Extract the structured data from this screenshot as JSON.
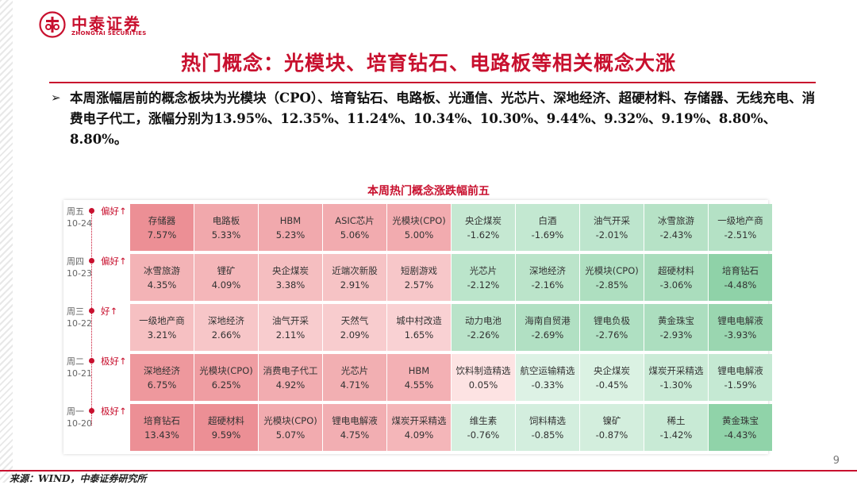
{
  "brand": {
    "cn": "中泰证券",
    "en": "ZHONGTAI SECURITIES"
  },
  "title": "热门概念：光模块、培育钻石、电路板等相关概念大涨",
  "bullet": {
    "symbol": "➢",
    "text": "本周涨幅居前的概念板块为光模块（CPO）、培育钻石、电路板、光通信、光芯片、深地经济、超硬材料、存储器、无线充电、消费电子代工，涨幅分别为13.95%、12.35%、11.24%、10.34%、10.30%、9.44%、9.32%、9.19%、8.80%、8.80%。"
  },
  "chart_data": {
    "type": "table",
    "title": "本周热门概念涨跌幅前五",
    "rows": [
      {
        "weekday": "周五",
        "date": "10-24",
        "sentiment": "偏好↑",
        "cells": [
          {
            "name": "存储器",
            "pct": "7.57%"
          },
          {
            "name": "电路板",
            "pct": "5.33%"
          },
          {
            "name": "HBM",
            "pct": "5.23%"
          },
          {
            "name": "ASIC芯片",
            "pct": "5.06%"
          },
          {
            "name": "光模块(CPO)",
            "pct": "5.00%"
          },
          {
            "name": "央企煤炭",
            "pct": "-1.62%"
          },
          {
            "name": "白酒",
            "pct": "-1.69%"
          },
          {
            "name": "油气开采",
            "pct": "-2.01%"
          },
          {
            "name": "冰雪旅游",
            "pct": "-2.43%"
          },
          {
            "name": "一级地产商",
            "pct": "-2.51%"
          }
        ]
      },
      {
        "weekday": "周四",
        "date": "10-23",
        "sentiment": "偏好↑",
        "cells": [
          {
            "name": "冰雪旅游",
            "pct": "4.35%"
          },
          {
            "name": "锂矿",
            "pct": "4.09%"
          },
          {
            "name": "央企煤炭",
            "pct": "3.38%"
          },
          {
            "name": "近端次新股",
            "pct": "2.91%"
          },
          {
            "name": "短剧游戏",
            "pct": "2.57%"
          },
          {
            "name": "光芯片",
            "pct": "-2.12%"
          },
          {
            "name": "深地经济",
            "pct": "-2.16%"
          },
          {
            "name": "光模块(CPO)",
            "pct": "-2.85%"
          },
          {
            "name": "超硬材料",
            "pct": "-3.06%"
          },
          {
            "name": "培育钻石",
            "pct": "-4.48%"
          }
        ]
      },
      {
        "weekday": "周三",
        "date": "10-22",
        "sentiment": "好↑",
        "cells": [
          {
            "name": "一级地产商",
            "pct": "3.21%"
          },
          {
            "name": "深地经济",
            "pct": "2.66%"
          },
          {
            "name": "油气开采",
            "pct": "2.11%"
          },
          {
            "name": "天然气",
            "pct": "2.09%"
          },
          {
            "name": "城中村改造",
            "pct": "1.65%"
          },
          {
            "name": "动力电池",
            "pct": "-2.26%"
          },
          {
            "name": "海南自贸港",
            "pct": "-2.69%"
          },
          {
            "name": "锂电负极",
            "pct": "-2.76%"
          },
          {
            "name": "黄金珠宝",
            "pct": "-2.93%"
          },
          {
            "name": "锂电电解液",
            "pct": "-3.93%"
          }
        ]
      },
      {
        "weekday": "周二",
        "date": "10-21",
        "sentiment": "极好↑",
        "cells": [
          {
            "name": "深地经济",
            "pct": "6.75%"
          },
          {
            "name": "光模块(CPO)",
            "pct": "6.25%"
          },
          {
            "name": "消费电子代工",
            "pct": "4.92%"
          },
          {
            "name": "光芯片",
            "pct": "4.71%"
          },
          {
            "name": "HBM",
            "pct": "4.55%"
          },
          {
            "name": "饮料制造精选",
            "pct": "0.05%"
          },
          {
            "name": "航空运输精选",
            "pct": "-0.33%"
          },
          {
            "name": "央企煤炭",
            "pct": "-0.45%"
          },
          {
            "name": "煤炭开采精选",
            "pct": "-1.30%"
          },
          {
            "name": "锂电电解液",
            "pct": "-1.59%"
          }
        ]
      },
      {
        "weekday": "周一",
        "date": "10-20",
        "sentiment": "极好↑",
        "cells": [
          {
            "name": "培育钻石",
            "pct": "13.43%"
          },
          {
            "name": "超硬材料",
            "pct": "9.59%"
          },
          {
            "name": "光模块(CPO)",
            "pct": "5.07%"
          },
          {
            "name": "锂电电解液",
            "pct": "4.75%"
          },
          {
            "name": "煤炭开采精选",
            "pct": "4.09%"
          },
          {
            "name": "维生素",
            "pct": "-0.76%"
          },
          {
            "name": "饲料精选",
            "pct": "-0.85%"
          },
          {
            "name": "镍矿",
            "pct": "-0.87%"
          },
          {
            "name": "稀土",
            "pct": "-1.42%"
          },
          {
            "name": "黄金珠宝",
            "pct": "-4.43%"
          }
        ]
      }
    ]
  },
  "colors": {
    "brand_red": "#c8102e",
    "gain_strong": "#ec8f95",
    "gain_light": "#fde4e4",
    "loss_strong": "#8fd2a8",
    "loss_light": "#e3f5ea"
  },
  "page_number": "9",
  "source": "来源：WIND，中泰证券研究所"
}
